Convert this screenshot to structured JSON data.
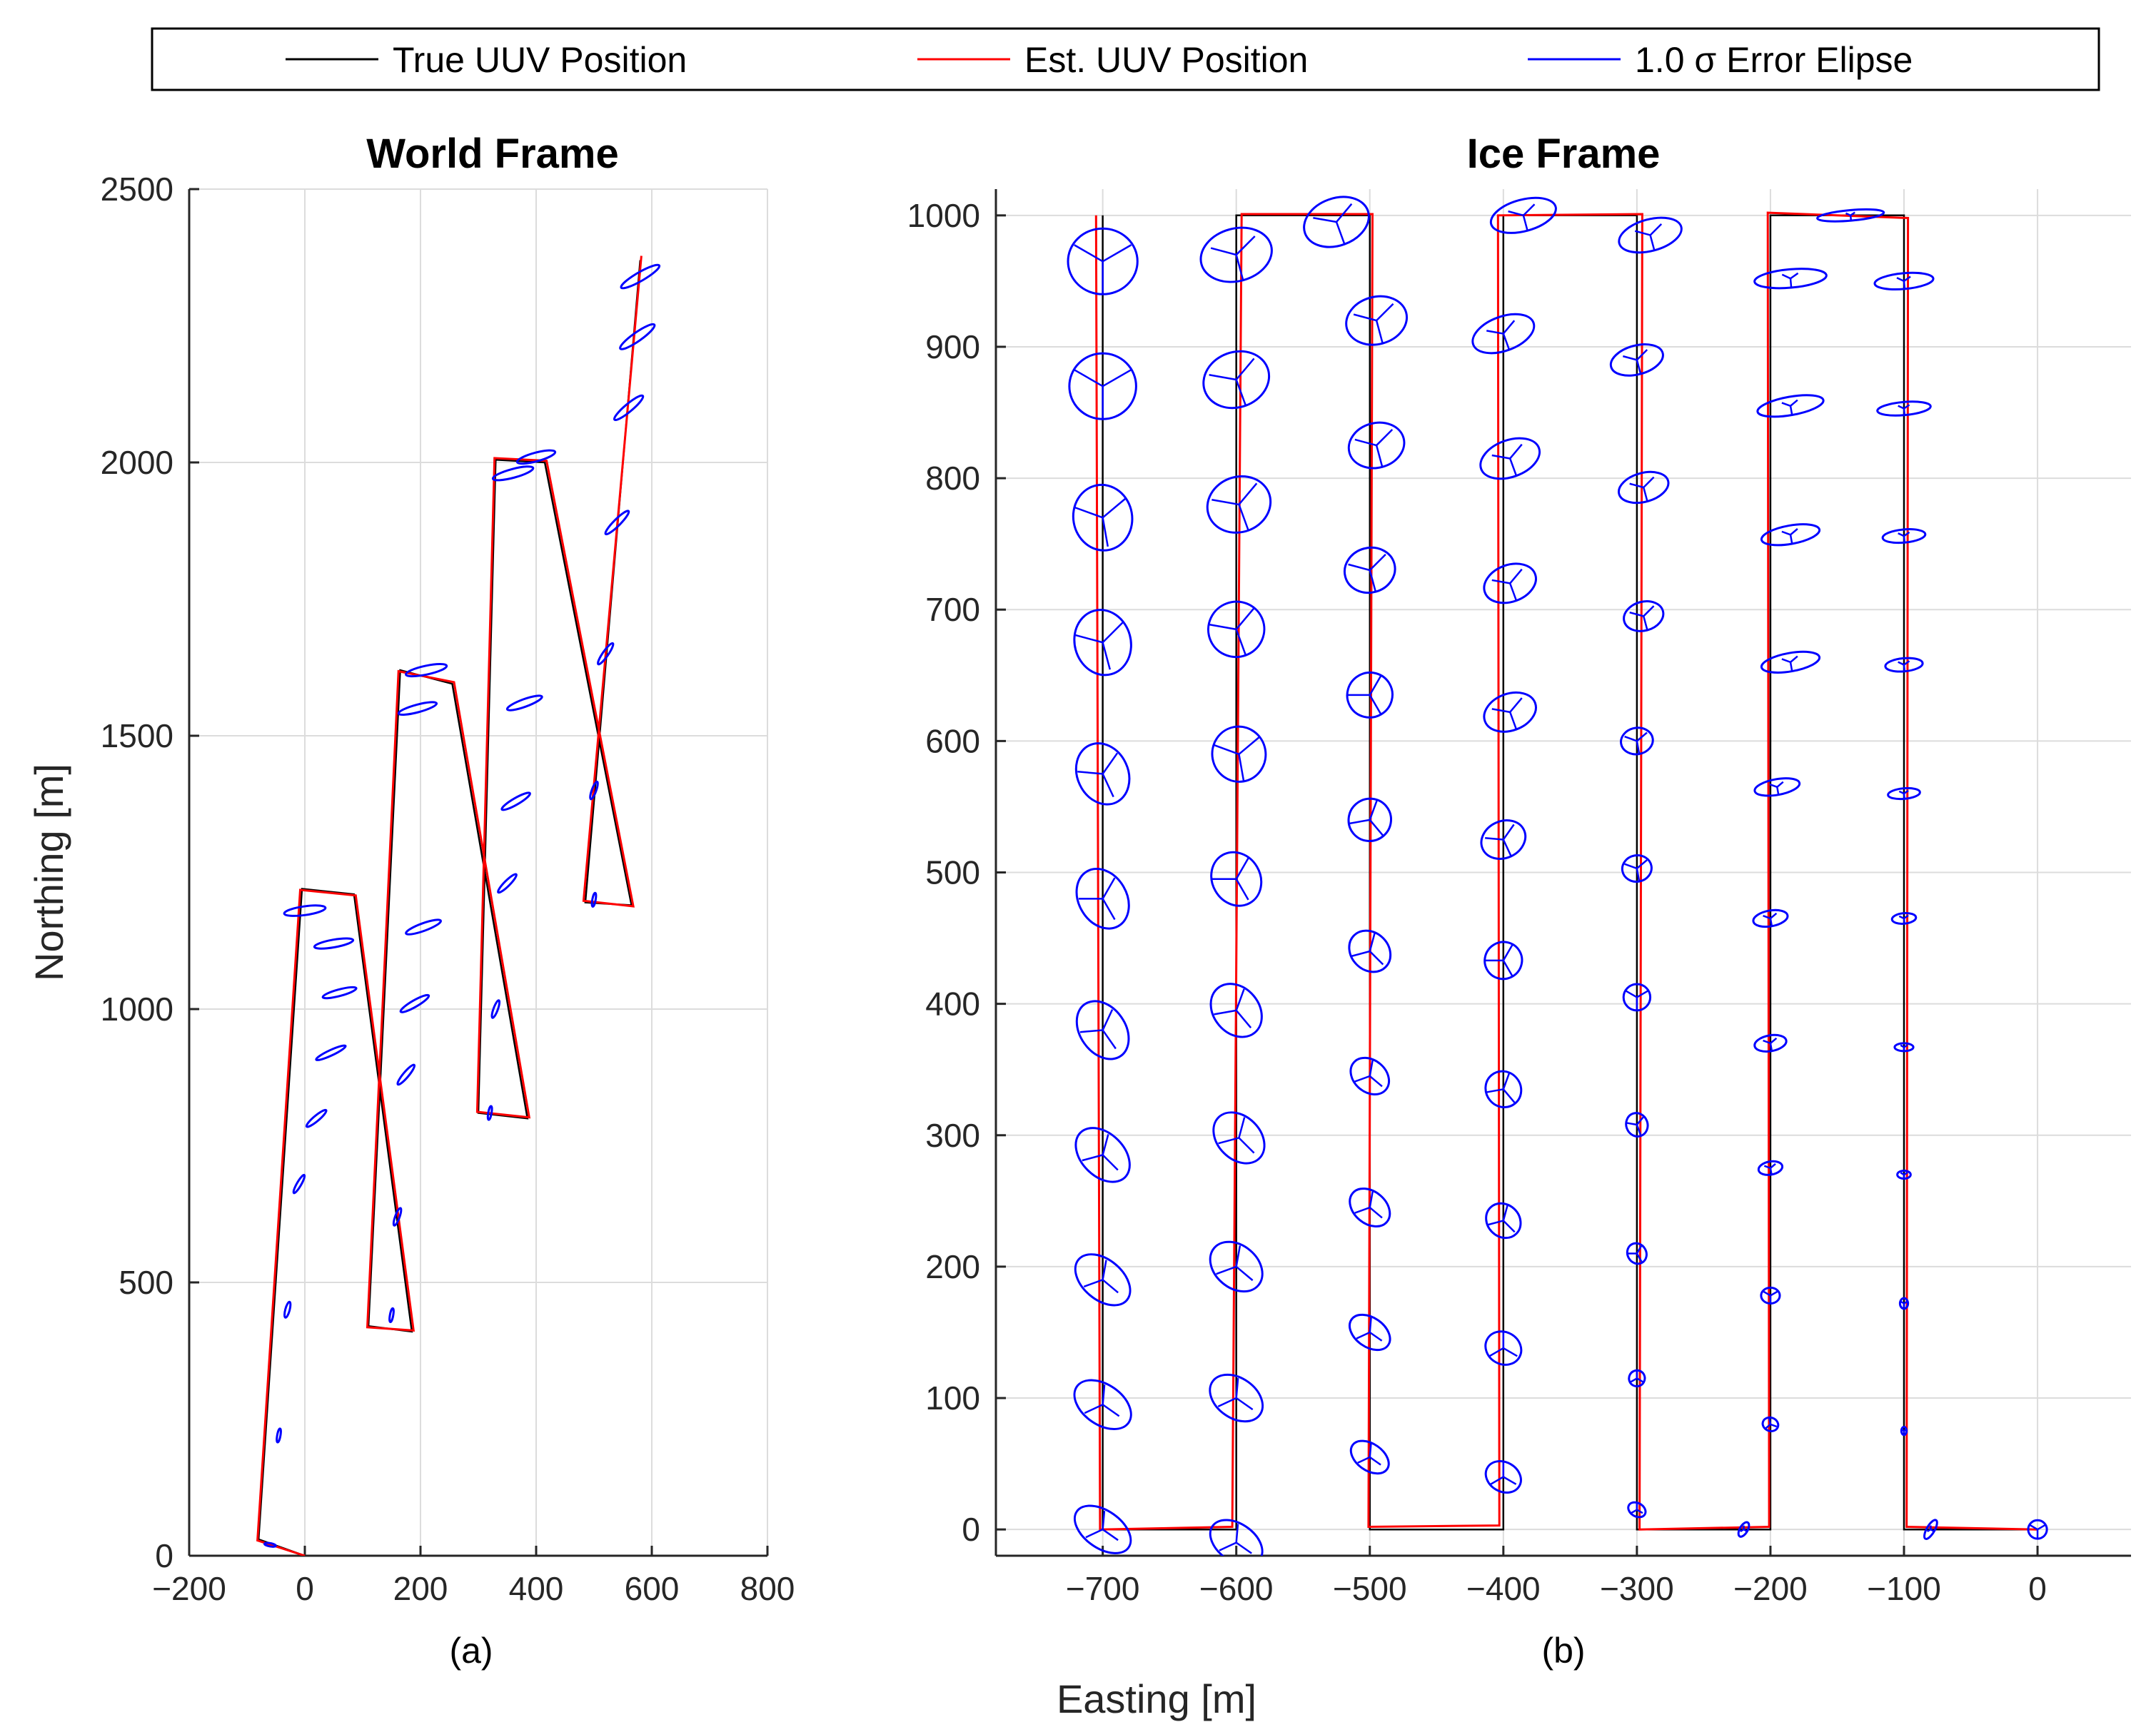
{
  "figure": {
    "xlabel": "Easting [m]",
    "colors": {
      "true": "#000000",
      "est": "#ff0000",
      "ellipse": "#0000ff",
      "grid": "#dcdcdc"
    },
    "legend": {
      "placement": "top",
      "entries": [
        {
          "label": "True UUV Position",
          "color": "#000000"
        },
        {
          "label": "Est. UUV Position",
          "color": "#ff0000"
        },
        {
          "label": "1.0 σ Error Elipse",
          "color": "#0000ff"
        }
      ]
    }
  },
  "chart_data": [
    {
      "type": "line",
      "title": "World Frame",
      "panel_label": "(a)",
      "xlabel": "",
      "ylabel": "Northing [m]",
      "xlim": [
        -200,
        800
      ],
      "ylim": [
        0,
        2500
      ],
      "xticks": [
        -200,
        0,
        200,
        400,
        600,
        800
      ],
      "yticks": [
        0,
        500,
        1000,
        1500,
        2000,
        2500
      ],
      "grid": true,
      "series": [
        {
          "name": "True UUV Position",
          "points": [
            [
              0,
              0
            ],
            [
              -80,
              30
            ],
            [
              -5,
              1220
            ],
            [
              85,
              1210
            ],
            [
              185,
              410
            ],
            [
              110,
              420
            ],
            [
              165,
              1620
            ],
            [
              255,
              1595
            ],
            [
              385,
              800
            ],
            [
              300,
              810
            ],
            [
              330,
              2005
            ],
            [
              415,
              2000
            ],
            [
              565,
              1190
            ],
            [
              485,
              1195
            ],
            [
              580,
              2370
            ]
          ]
        },
        {
          "name": "Est. UUV Position",
          "points": [
            [
              0,
              0
            ],
            [
              -82,
              28
            ],
            [
              -8,
              1218
            ],
            [
              88,
              1208
            ],
            [
              188,
              412
            ],
            [
              108,
              418
            ],
            [
              162,
              1618
            ],
            [
              258,
              1598
            ],
            [
              388,
              802
            ],
            [
              298,
              812
            ],
            [
              328,
              2008
            ],
            [
              418,
              2003
            ],
            [
              568,
              1188
            ],
            [
              482,
              1198
            ],
            [
              582,
              2378
            ]
          ]
        },
        {
          "name": "1.0 σ Error Elipse",
          "ellipses": [
            [
              -60,
              20,
              10,
              3,
              -10
            ],
            [
              -45,
              220,
              12,
              3,
              80
            ],
            [
              -30,
              450,
              14,
              4,
              75
            ],
            [
              -10,
              680,
              18,
              4,
              60
            ],
            [
              20,
              800,
              22,
              5,
              40
            ],
            [
              45,
              920,
              28,
              5,
              25
            ],
            [
              60,
              1030,
              30,
              6,
              15
            ],
            [
              50,
              1120,
              34,
              7,
              10
            ],
            [
              0,
              1180,
              36,
              8,
              8
            ],
            [
              150,
              440,
              12,
              3,
              80
            ],
            [
              160,
              620,
              16,
              4,
              70
            ],
            [
              175,
              880,
              22,
              5,
              50
            ],
            [
              190,
              1010,
              28,
              6,
              30
            ],
            [
              205,
              1150,
              32,
              7,
              20
            ],
            [
              195,
              1550,
              34,
              7,
              15
            ],
            [
              210,
              1620,
              36,
              8,
              12
            ],
            [
              320,
              810,
              12,
              3,
              80
            ],
            [
              330,
              1000,
              16,
              4,
              70
            ],
            [
              350,
              1230,
              22,
              5,
              45
            ],
            [
              365,
              1380,
              28,
              6,
              30
            ],
            [
              380,
              1560,
              32,
              7,
              20
            ],
            [
              360,
              1980,
              36,
              8,
              15
            ],
            [
              400,
              2010,
              34,
              8,
              15
            ],
            [
              500,
              1200,
              12,
              3,
              80
            ],
            [
              500,
              1400,
              16,
              4,
              70
            ],
            [
              520,
              1650,
              22,
              5,
              55
            ],
            [
              540,
              1890,
              28,
              6,
              45
            ],
            [
              560,
              2100,
              32,
              7,
              40
            ],
            [
              575,
              2230,
              36,
              8,
              35
            ],
            [
              580,
              2340,
              38,
              8,
              30
            ]
          ]
        }
      ]
    },
    {
      "type": "line",
      "title": "Ice Frame",
      "panel_label": "(b)",
      "xlabel": "Easting [m]",
      "ylabel": "",
      "xlim": [
        -780,
        70
      ],
      "ylim": [
        -20,
        1020
      ],
      "xticks": [
        -700,
        -600,
        -500,
        -400,
        -300,
        -200,
        -100,
        0
      ],
      "yticks": [
        0,
        100,
        200,
        300,
        400,
        500,
        600,
        700,
        800,
        900,
        1000
      ],
      "grid": true,
      "series": [
        {
          "name": "True UUV Position",
          "points": [
            [
              0,
              0
            ],
            [
              -100,
              0
            ],
            [
              -100,
              1000
            ],
            [
              -200,
              1000
            ],
            [
              -200,
              0
            ],
            [
              -300,
              0
            ],
            [
              -300,
              1000
            ],
            [
              -400,
              1000
            ],
            [
              -400,
              0
            ],
            [
              -500,
              0
            ],
            [
              -500,
              1000
            ],
            [
              -600,
              1000
            ],
            [
              -600,
              0
            ],
            [
              -700,
              0
            ],
            [
              -700,
              1000
            ]
          ]
        },
        {
          "name": "Est. UUV Position",
          "points": [
            [
              0,
              0
            ],
            [
              -98,
              2
            ],
            [
              -97,
              998
            ],
            [
              -202,
              1002
            ],
            [
              -201,
              2
            ],
            [
              -298,
              0
            ],
            [
              -296,
              1001
            ],
            [
              -404,
              1000
            ],
            [
              -403,
              3
            ],
            [
              -501,
              2
            ],
            [
              -498,
              1001
            ],
            [
              -596,
              1001
            ],
            [
              -603,
              2
            ],
            [
              -702,
              0
            ],
            [
              -705,
              1000
            ]
          ]
        },
        {
          "name": "1.0 σ Error Elipse",
          "ellipses": [
            [
              0,
              0,
              7,
              7,
              0
            ],
            [
              -80,
              0,
              8,
              3,
              60
            ],
            [
              -100,
              75,
              2,
              3,
              0
            ],
            [
              -100,
              172,
              3,
              4,
              0
            ],
            [
              -100,
              270,
              5,
              3,
              0
            ],
            [
              -100,
              367,
              7,
              3,
              0
            ],
            [
              -100,
              465,
              9,
              4,
              5
            ],
            [
              -100,
              560,
              12,
              4,
              5
            ],
            [
              -100,
              658,
              14,
              5,
              5
            ],
            [
              -100,
              756,
              16,
              5,
              5
            ],
            [
              -100,
              853,
              20,
              5,
              5
            ],
            [
              -100,
              950,
              22,
              6,
              5
            ],
            [
              -140,
              1000,
              25,
              4,
              5
            ],
            [
              -220,
              0,
              6,
              3,
              60
            ],
            [
              -200,
              80,
              5,
              6,
              70
            ],
            [
              -200,
              178,
              7,
              6,
              0
            ],
            [
              -200,
              275,
              9,
              5,
              10
            ],
            [
              -200,
              370,
              12,
              6,
              10
            ],
            [
              -200,
              465,
              13,
              6,
              10
            ],
            [
              -195,
              565,
              17,
              6,
              10
            ],
            [
              -185,
              660,
              22,
              7,
              10
            ],
            [
              -185,
              757,
              22,
              7,
              10
            ],
            [
              -185,
              855,
              25,
              7,
              10
            ],
            [
              -185,
              952,
              27,
              7,
              5
            ],
            [
              -300,
              15,
              5,
              7,
              60
            ],
            [
              -300,
              115,
              6,
              6,
              60
            ],
            [
              -300,
              210,
              7,
              8,
              30
            ],
            [
              -300,
              308,
              8,
              9,
              20
            ],
            [
              -300,
              405,
              10,
              10,
              0
            ],
            [
              -300,
              503,
              11,
              10,
              10
            ],
            [
              -300,
              600,
              12,
              10,
              10
            ],
            [
              -295,
              695,
              15,
              11,
              15
            ],
            [
              -295,
              793,
              19,
              11,
              15
            ],
            [
              -300,
              890,
              20,
              11,
              15
            ],
            [
              -290,
              985,
              24,
              12,
              15
            ],
            [
              -400,
              40,
              11,
              14,
              60
            ],
            [
              -400,
              138,
              12,
              14,
              60
            ],
            [
              -400,
              235,
              12,
              14,
              45
            ],
            [
              -400,
              335,
              13,
              14,
              40
            ],
            [
              -400,
              433,
              14,
              14,
              30
            ],
            [
              -400,
              525,
              17,
              14,
              25
            ],
            [
              -395,
              622,
              20,
              14,
              20
            ],
            [
              -395,
              720,
              20,
              14,
              20
            ],
            [
              -395,
              815,
              23,
              14,
              20
            ],
            [
              -400,
              910,
              24,
              13,
              20
            ],
            [
              -385,
              1000,
              25,
              12,
              15
            ],
            [
              -500,
              55,
              10,
              16,
              55
            ],
            [
              -500,
              150,
              11,
              17,
              55
            ],
            [
              -500,
              245,
              12,
              17,
              50
            ],
            [
              -500,
              345,
              12,
              16,
              50
            ],
            [
              -500,
              440,
              14,
              17,
              45
            ],
            [
              -500,
              540,
              16,
              16,
              40
            ],
            [
              -500,
              635,
              17,
              17,
              30
            ],
            [
              -500,
              730,
              19,
              17,
              15
            ],
            [
              -495,
              825,
              21,
              17,
              15
            ],
            [
              -495,
              920,
              23,
              18,
              15
            ],
            [
              -525,
              995,
              25,
              18,
              20
            ],
            [
              -600,
              -10,
              14,
              22,
              55
            ],
            [
              -600,
              100,
              15,
              22,
              55
            ],
            [
              -600,
              200,
              16,
              22,
              50
            ],
            [
              -598,
              298,
              16,
              22,
              45
            ],
            [
              -600,
              395,
              17,
              22,
              40
            ],
            [
              -600,
              495,
              18,
              21,
              30
            ],
            [
              -598,
              590,
              20,
              21,
              10
            ],
            [
              -600,
              685,
              21,
              21,
              20
            ],
            [
              -598,
              780,
              24,
              21,
              20
            ],
            [
              -600,
              875,
              25,
              21,
              20
            ],
            [
              -600,
              970,
              27,
              20,
              15
            ],
            [
              -700,
              0,
              14,
              24,
              55
            ],
            [
              -700,
              95,
              15,
              24,
              55
            ],
            [
              -700,
              190,
              15,
              24,
              50
            ],
            [
              -700,
              285,
              16,
              24,
              45
            ],
            [
              -700,
              380,
              17,
              24,
              35
            ],
            [
              -700,
              480,
              18,
              24,
              30
            ],
            [
              -700,
              575,
              19,
              24,
              25
            ],
            [
              -700,
              675,
              21,
              25,
              15
            ],
            [
              -700,
              770,
              22,
              25,
              10
            ],
            [
              -700,
              870,
              25,
              25,
              0
            ],
            [
              -700,
              965,
              26,
              25,
              0
            ]
          ]
        }
      ]
    }
  ]
}
